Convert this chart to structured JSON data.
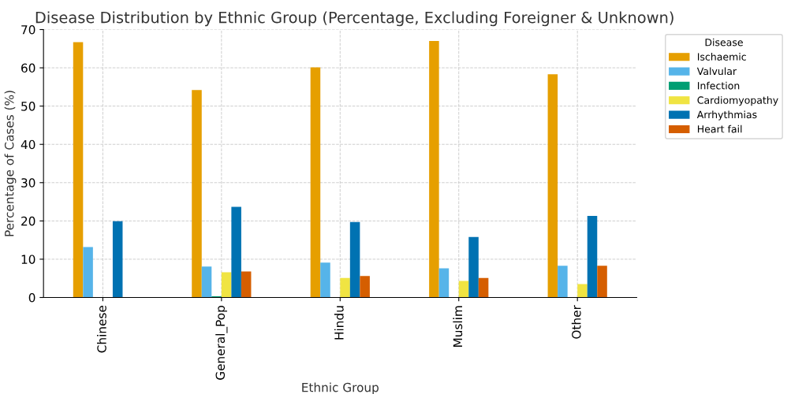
{
  "chart_data": {
    "type": "bar",
    "title": "Disease Distribution by Ethnic Group (Percentage, Excluding Foreigner & Unknown)",
    "xlabel": "Ethnic Group",
    "ylabel": "Percentage of Cases (%)",
    "legend_title": "Disease",
    "categories": [
      "Chinese",
      "General_Pop",
      "Hindu",
      "Muslim",
      "Other"
    ],
    "series": [
      {
        "name": "Ischaemic",
        "color": "#e69f00",
        "values": [
          66.7,
          54.2,
          60.1,
          67.0,
          58.3
        ]
      },
      {
        "name": "Valvular",
        "color": "#56b4e9",
        "values": [
          13.2,
          8.1,
          9.1,
          7.6,
          8.3
        ]
      },
      {
        "name": "Infection",
        "color": "#009e73",
        "values": [
          0,
          0.3,
          0,
          0,
          0
        ]
      },
      {
        "name": "Cardiomyopathy",
        "color": "#f0e442",
        "values": [
          0,
          6.6,
          5.1,
          4.3,
          3.5
        ]
      },
      {
        "name": "Arrhythmias",
        "color": "#0072b2",
        "values": [
          19.9,
          23.7,
          19.7,
          15.8,
          21.3
        ]
      },
      {
        "name": "Heart fail",
        "color": "#d55e00",
        "values": [
          0,
          6.8,
          5.6,
          5.1,
          8.3
        ]
      }
    ],
    "ylim": [
      0,
      70
    ],
    "yticks": [
      0,
      10,
      20,
      30,
      40,
      50,
      60,
      70
    ],
    "grid": true,
    "legend": "top right"
  }
}
